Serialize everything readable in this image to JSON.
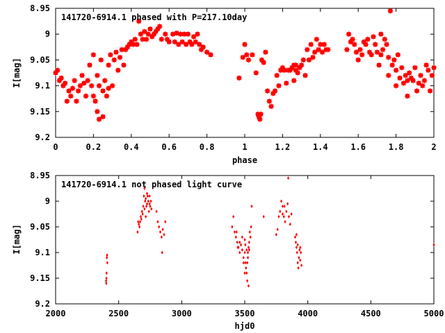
{
  "chart_data": [
    {
      "type": "scatter",
      "title": "141720-6914.1 phased with P=217.10day",
      "xlabel": "phase",
      "ylabel": "I[mag]",
      "xlim": [
        0,
        2
      ],
      "ylim": [
        8.95,
        9.2
      ],
      "y_inverted": true,
      "xticks": [
        0,
        0.2,
        0.4,
        0.6,
        0.8,
        1,
        1.2,
        1.4,
        1.6,
        1.8,
        2
      ],
      "xtick_labels": [
        "0",
        "0.2",
        "0.4",
        "0.6",
        "0.8",
        "1",
        "1.2",
        "1.4",
        "1.6",
        "1.8",
        "2"
      ],
      "yticks": [
        8.95,
        9.0,
        9.05,
        9.1,
        9.15,
        9.2
      ],
      "ytick_labels": [
        "8.95",
        "9",
        "9.05",
        "9.1",
        "9.15",
        "9.2"
      ],
      "marker_color": "#ff0000",
      "marker": "star",
      "grid": false,
      "points": [
        [
          0.0,
          9.075
        ],
        [
          0.01,
          9.07
        ],
        [
          0.02,
          9.09
        ],
        [
          0.03,
          9.085
        ],
        [
          0.04,
          9.1
        ],
        [
          0.05,
          9.095
        ],
        [
          0.06,
          9.13
        ],
        [
          0.07,
          9.11
        ],
        [
          0.08,
          9.12
        ],
        [
          0.09,
          9.105
        ],
        [
          0.1,
          9.09
        ],
        [
          0.11,
          9.13
        ],
        [
          0.12,
          9.11
        ],
        [
          0.13,
          9.1
        ],
        [
          0.14,
          9.08
        ],
        [
          0.15,
          9.095
        ],
        [
          0.16,
          9.12
        ],
        [
          0.17,
          9.09
        ],
        [
          0.18,
          9.06
        ],
        [
          0.19,
          9.1
        ],
        [
          0.2,
          9.04
        ],
        [
          0.21,
          9.13
        ],
        [
          0.22,
          9.08
        ],
        [
          0.23,
          9.1
        ],
        [
          0.24,
          9.05
        ],
        [
          0.25,
          9.11
        ],
        [
          0.26,
          9.09
        ],
        [
          0.27,
          9.12
        ],
        [
          0.28,
          9.06
        ],
        [
          0.29,
          9.04
        ],
        [
          0.3,
          9.1
        ],
        [
          0.31,
          9.05
        ],
        [
          0.32,
          9.035
        ],
        [
          0.33,
          9.07
        ],
        [
          0.34,
          9.045
        ],
        [
          0.2,
          9.12
        ],
        [
          0.22,
          9.15
        ],
        [
          0.25,
          9.16
        ],
        [
          0.28,
          9.105
        ],
        [
          0.23,
          9.165
        ],
        [
          0.35,
          9.03
        ],
        [
          0.36,
          9.06
        ],
        [
          0.37,
          9.03
        ],
        [
          0.38,
          9.025
        ],
        [
          0.39,
          9.02
        ],
        [
          0.4,
          9.015
        ],
        [
          0.41,
          9.02
        ],
        [
          0.42,
          9.01
        ],
        [
          0.43,
          9.02
        ],
        [
          0.44,
          8.975
        ],
        [
          0.45,
          9.0
        ],
        [
          0.46,
          9.01
        ],
        [
          0.47,
          8.995
        ],
        [
          0.48,
          9.01
        ],
        [
          0.49,
          9.0
        ],
        [
          0.5,
          8.99
        ],
        [
          0.51,
          9.005
        ],
        [
          0.52,
          9.0
        ],
        [
          0.53,
          8.995
        ],
        [
          0.54,
          8.99
        ],
        [
          0.55,
          8.985
        ],
        [
          0.56,
          9.01
        ],
        [
          0.58,
          9.0
        ],
        [
          0.6,
          9.015
        ],
        [
          0.62,
          9.0
        ],
        [
          0.63,
          9.015
        ],
        [
          0.64,
          8.998
        ],
        [
          0.66,
          9.0
        ],
        [
          0.67,
          9.015
        ],
        [
          0.68,
          9.0
        ],
        [
          0.69,
          9.02
        ],
        [
          0.7,
          9.0
        ],
        [
          0.71,
          9.015
        ],
        [
          0.72,
          9.02
        ],
        [
          0.74,
          9.015
        ],
        [
          0.76,
          9.02
        ],
        [
          0.77,
          9.03
        ],
        [
          0.78,
          9.025
        ],
        [
          0.8,
          9.035
        ],
        [
          0.82,
          9.04
        ],
        [
          0.75,
          9.0
        ],
        [
          0.73,
          9.005
        ],
        [
          0.65,
          9.02
        ],
        [
          0.59,
          9.01
        ],
        [
          0.97,
          9.085
        ],
        [
          0.99,
          9.045
        ],
        [
          1.0,
          9.02
        ],
        [
          1.01,
          9.04
        ],
        [
          1.02,
          9.05
        ],
        [
          1.04,
          9.04
        ],
        [
          1.06,
          9.075
        ],
        [
          1.07,
          9.155
        ],
        [
          1.075,
          9.16
        ],
        [
          1.08,
          9.165
        ],
        [
          1.085,
          9.155
        ],
        [
          1.09,
          9.05
        ],
        [
          1.1,
          9.055
        ],
        [
          1.11,
          9.035
        ],
        [
          1.12,
          9.11
        ],
        [
          1.13,
          9.13
        ],
        [
          1.14,
          9.14
        ],
        [
          1.15,
          9.115
        ],
        [
          1.16,
          9.11
        ],
        [
          1.17,
          9.08
        ],
        [
          1.18,
          9.1
        ],
        [
          1.2,
          9.065
        ],
        [
          1.21,
          9.07
        ],
        [
          1.22,
          9.095
        ],
        [
          1.24,
          9.07
        ],
        [
          1.25,
          9.065
        ],
        [
          1.26,
          9.06
        ],
        [
          1.27,
          9.07
        ],
        [
          1.28,
          9.075
        ],
        [
          1.29,
          9.065
        ],
        [
          1.3,
          9.06
        ],
        [
          1.31,
          9.05
        ],
        [
          1.32,
          9.08
        ],
        [
          1.33,
          9.03
        ],
        [
          1.34,
          9.05
        ],
        [
          1.35,
          9.02
        ],
        [
          1.36,
          9.045
        ],
        [
          1.37,
          9.035
        ],
        [
          1.38,
          9.01
        ],
        [
          1.39,
          9.03
        ],
        [
          1.4,
          9.02
        ],
        [
          1.41,
          9.035
        ],
        [
          1.42,
          9.02
        ],
        [
          1.43,
          9.03
        ],
        [
          1.44,
          9.03
        ],
        [
          1.26,
          9.09
        ],
        [
          1.27,
          9.06
        ],
        [
          1.23,
          9.07
        ],
        [
          1.19,
          9.07
        ],
        [
          1.54,
          9.03
        ],
        [
          1.55,
          9.0
        ],
        [
          1.56,
          9.015
        ],
        [
          1.57,
          9.01
        ],
        [
          1.58,
          9.02
        ],
        [
          1.59,
          9.035
        ],
        [
          1.6,
          9.05
        ],
        [
          1.61,
          9.03
        ],
        [
          1.62,
          9.04
        ],
        [
          1.63,
          9.015
        ],
        [
          1.64,
          9.02
        ],
        [
          1.65,
          9.01
        ],
        [
          1.66,
          9.035
        ],
        [
          1.67,
          9.04
        ],
        [
          1.68,
          9.005
        ],
        [
          1.69,
          9.02
        ],
        [
          1.7,
          9.035
        ],
        [
          1.71,
          9.06
        ],
        [
          1.72,
          9.04
        ],
        [
          1.73,
          9.03
        ],
        [
          1.74,
          9.01
        ],
        [
          1.75,
          9.02
        ],
        [
          1.76,
          9.045
        ],
        [
          1.77,
          8.955
        ],
        [
          1.78,
          9.06
        ],
        [
          1.79,
          9.05
        ],
        [
          1.8,
          9.07
        ],
        [
          1.81,
          9.04
        ],
        [
          1.82,
          9.085
        ],
        [
          1.83,
          9.065
        ],
        [
          1.84,
          9.095
        ],
        [
          1.85,
          9.08
        ],
        [
          1.86,
          9.09
        ],
        [
          1.87,
          9.075
        ],
        [
          1.88,
          9.085
        ],
        [
          1.89,
          9.09
        ],
        [
          1.9,
          9.065
        ],
        [
          1.91,
          9.11
        ],
        [
          1.92,
          9.095
        ],
        [
          1.93,
          9.08
        ],
        [
          1.94,
          9.1
        ],
        [
          1.95,
          9.09
        ],
        [
          1.96,
          9.06
        ],
        [
          1.97,
          9.07
        ],
        [
          1.98,
          9.11
        ],
        [
          1.99,
          9.08
        ],
        [
          2.0,
          9.065
        ],
        [
          1.72,
          9.0
        ],
        [
          1.76,
          9.08
        ],
        [
          1.8,
          9.1
        ],
        [
          1.86,
          9.12
        ]
      ]
    },
    {
      "type": "scatter",
      "title": "141720-6914.1 not phased light curve",
      "xlabel": "hjd0",
      "ylabel": "I[mag]",
      "xlim": [
        2000,
        5000
      ],
      "ylim": [
        8.95,
        9.2
      ],
      "y_inverted": true,
      "xticks": [
        2000,
        2500,
        3000,
        3500,
        4000,
        4500,
        5000
      ],
      "xtick_labels": [
        "2000",
        "2500",
        "3000",
        "3500",
        "4000",
        "4500",
        "5000"
      ],
      "yticks": [
        8.95,
        9.0,
        9.05,
        9.1,
        9.15,
        9.2
      ],
      "ytick_labels": [
        "8.95",
        "9",
        "9.05",
        "9.1",
        "9.15",
        "9.2"
      ],
      "marker_color": "#ff0000",
      "marker": "diamond",
      "grid": false,
      "points": [
        [
          2400,
          9.155
        ],
        [
          2402,
          9.16
        ],
        [
          2404,
          9.14
        ],
        [
          2406,
          9.11
        ],
        [
          2408,
          9.105
        ],
        [
          2410,
          9.12
        ],
        [
          2403,
          9.15
        ],
        [
          2650,
          9.06
        ],
        [
          2655,
          9.04
        ],
        [
          2660,
          9.045
        ],
        [
          2665,
          9.05
        ],
        [
          2670,
          9.04
        ],
        [
          2675,
          9.03
        ],
        [
          2680,
          9.035
        ],
        [
          2685,
          9.02
        ],
        [
          2690,
          9.025
        ],
        [
          2695,
          9.01
        ],
        [
          2700,
          8.99
        ],
        [
          2705,
          9.015
        ],
        [
          2710,
          9.0
        ],
        [
          2715,
          8.995
        ],
        [
          2720,
          9.01
        ],
        [
          2725,
          9.005
        ],
        [
          2730,
          8.99
        ],
        [
          2735,
          9.0
        ],
        [
          2740,
          9.02
        ],
        [
          2745,
          9.005
        ],
        [
          2750,
          9.01
        ],
        [
          2755,
          9.0
        ],
        [
          2760,
          9.015
        ],
        [
          2705,
          8.975
        ],
        [
          2715,
          9.03
        ],
        [
          2725,
          8.985
        ],
        [
          2745,
          8.99
        ],
        [
          2800,
          9.02
        ],
        [
          2810,
          9.04
        ],
        [
          2820,
          9.05
        ],
        [
          2830,
          9.06
        ],
        [
          2840,
          9.07
        ],
        [
          2850,
          9.055
        ],
        [
          2860,
          9.065
        ],
        [
          2870,
          9.04
        ],
        [
          2845,
          9.1
        ],
        [
          3400,
          9.05
        ],
        [
          3410,
          9.03
        ],
        [
          3420,
          9.06
        ],
        [
          3430,
          9.07
        ],
        [
          3440,
          9.08
        ],
        [
          3450,
          9.09
        ],
        [
          3460,
          9.1
        ],
        [
          3470,
          9.085
        ],
        [
          3480,
          9.095
        ],
        [
          3490,
          9.11
        ],
        [
          3500,
          9.1
        ],
        [
          3505,
          9.12
        ],
        [
          3510,
          9.13
        ],
        [
          3515,
          9.14
        ],
        [
          3520,
          9.12
        ],
        [
          3525,
          9.1
        ],
        [
          3530,
          9.09
        ],
        [
          3535,
          9.08
        ],
        [
          3540,
          9.06
        ],
        [
          3545,
          9.07
        ],
        [
          3550,
          9.05
        ],
        [
          3555,
          9.01
        ],
        [
          3530,
          9.165
        ],
        [
          3520,
          9.155
        ],
        [
          3500,
          9.075
        ],
        [
          3480,
          9.07
        ],
        [
          3460,
          9.08
        ],
        [
          3445,
          9.09
        ],
        [
          3435,
          9.06
        ],
        [
          3505,
          9.085
        ],
        [
          3515,
          9.095
        ],
        [
          3525,
          9.11
        ],
        [
          3535,
          9.095
        ],
        [
          3500,
          9.14
        ],
        [
          3490,
          9.12
        ],
        [
          3650,
          9.03
        ],
        [
          3750,
          9.065
        ],
        [
          3760,
          9.055
        ],
        [
          3770,
          9.03
        ],
        [
          3780,
          9.02
        ],
        [
          3790,
          9.0
        ],
        [
          3800,
          9.01
        ],
        [
          3810,
          9.03
        ],
        [
          3820,
          9.04
        ],
        [
          3830,
          9.02
        ],
        [
          3840,
          9.005
        ],
        [
          3850,
          9.03
        ],
        [
          3860,
          9.045
        ],
        [
          3870,
          9.025
        ],
        [
          3845,
          8.955
        ],
        [
          3815,
          9.01
        ],
        [
          3800,
          9.025
        ],
        [
          3900,
          9.07
        ],
        [
          3905,
          9.08
        ],
        [
          3910,
          9.09
        ],
        [
          3915,
          9.1
        ],
        [
          3920,
          9.12
        ],
        [
          3925,
          9.13
        ],
        [
          3930,
          9.11
        ],
        [
          3935,
          9.095
        ],
        [
          3940,
          9.115
        ],
        [
          3945,
          9.1
        ],
        [
          3950,
          9.125
        ],
        [
          3910,
          9.065
        ],
        [
          3920,
          9.085
        ],
        [
          3940,
          9.09
        ],
        [
          5000,
          9.085
        ]
      ]
    }
  ]
}
